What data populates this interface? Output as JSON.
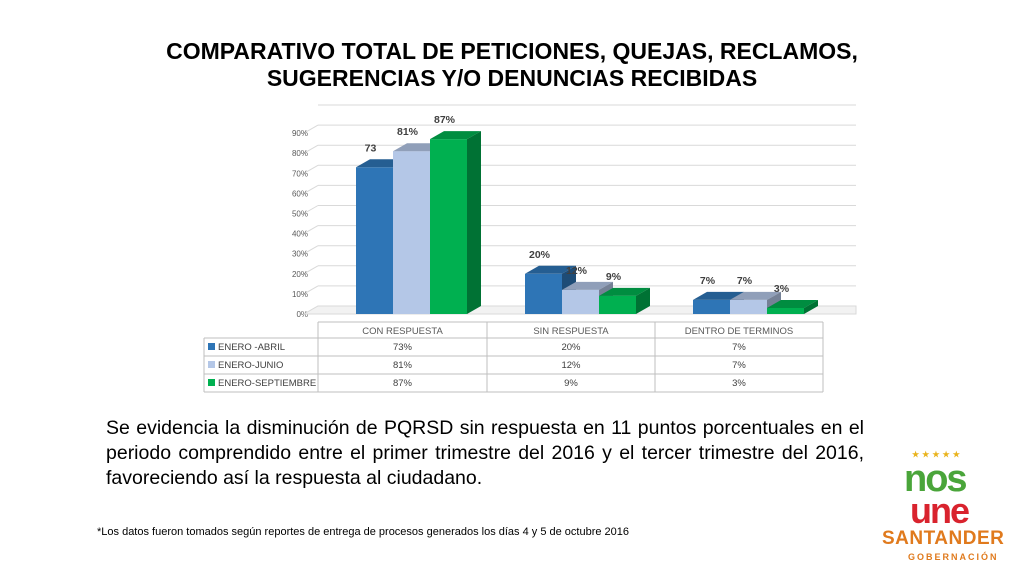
{
  "title_line1": "COMPARATIVO TOTAL DE PETICIONES, QUEJAS, RECLAMOS,",
  "title_line2": "SUGERENCIAS Y/O DENUNCIAS RECIBIDAS",
  "body_text": "Se evidencia la disminución de PQRSD sin respuesta en 11 puntos porcentuales en el periodo comprendido entre el primer trimestre del 2016 y el tercer trimestre del 2016, favoreciendo así la respuesta al ciudadano.",
  "footnote": "*Los datos fueron tomados según reportes de entrega de procesos generados  los días  4 y 5 de octubre 2016",
  "logo": {
    "nos": "nos",
    "une": "une",
    "santander": "SANTANDER",
    "gobernacion": "GOBERNACIÓN",
    "stars": "★★★★★"
  },
  "chart_data": {
    "type": "bar",
    "style": "3d-clustered-column-with-data-table",
    "categories": [
      "CON RESPUESTA",
      "SIN RESPUESTA",
      "DENTRO DE TERMINOS"
    ],
    "series": [
      {
        "name": "ENERO -ABRIL",
        "values": [
          73,
          20,
          7
        ],
        "labels": [
          "73",
          "20%",
          "7%"
        ],
        "table": [
          "73%",
          "20%",
          "7%"
        ],
        "color": "#2e75b6"
      },
      {
        "name": "ENERO-JUNIO",
        "values": [
          81,
          12,
          7
        ],
        "labels": [
          "81%",
          "12%",
          "7%"
        ],
        "table": [
          "81%",
          "12%",
          "7%"
        ],
        "color": "#b4c7e7"
      },
      {
        "name": "ENERO-SEPTIEMBRE",
        "values": [
          87,
          9,
          3
        ],
        "labels": [
          "87%",
          "9%",
          "3%"
        ],
        "table": [
          "87%",
          "9%",
          "3%"
        ],
        "color": "#00b050"
      }
    ],
    "yticks": [
      "0%",
      "10%",
      "20%",
      "30%",
      "40%",
      "50%",
      "60%",
      "70%",
      "80%",
      "90%"
    ],
    "ylim": [
      0,
      100
    ],
    "grid": true,
    "legend": "in data table"
  }
}
